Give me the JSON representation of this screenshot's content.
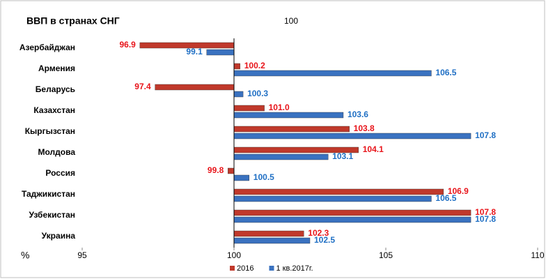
{
  "chart_data": {
    "type": "bar",
    "orientation": "horizontal",
    "title": "ВВП в странах СНГ",
    "x_label": "%",
    "baseline": 100,
    "categories": [
      "Азербайджан",
      "Армения",
      "Беларусь",
      "Казахстан",
      "Кыргызстан",
      "Молдова",
      "Россия",
      "Таджикистан",
      "Узбекистан",
      "Украина"
    ],
    "series": [
      {
        "name": "2016",
        "color": "#c0392b",
        "label_color": "#e8141a",
        "values": [
          96.9,
          100.2,
          97.4,
          101.0,
          103.8,
          104.1,
          99.8,
          106.9,
          107.8,
          102.3
        ],
        "value_labels": [
          "96.9",
          "100.2",
          "97.4",
          "101.0",
          "103.8",
          "104.1",
          "99.8",
          "106.9",
          "107.8",
          "102.3"
        ]
      },
      {
        "name": "1 кв.2017г.",
        "color": "#3a72c0",
        "label_color": "#1f6fc4",
        "values": [
          99.1,
          106.5,
          100.3,
          103.6,
          107.8,
          103.1,
          100.5,
          106.5,
          107.8,
          102.5
        ],
        "value_labels": [
          "99.1",
          "106.5",
          "100.3",
          "103.6",
          "107.8",
          "103.1",
          "100.5",
          "106.5",
          "107.8",
          "102.5"
        ]
      }
    ],
    "xlim": [
      95,
      110
    ],
    "xticks": [
      95,
      100,
      105,
      110
    ],
    "legend": "bottom"
  }
}
